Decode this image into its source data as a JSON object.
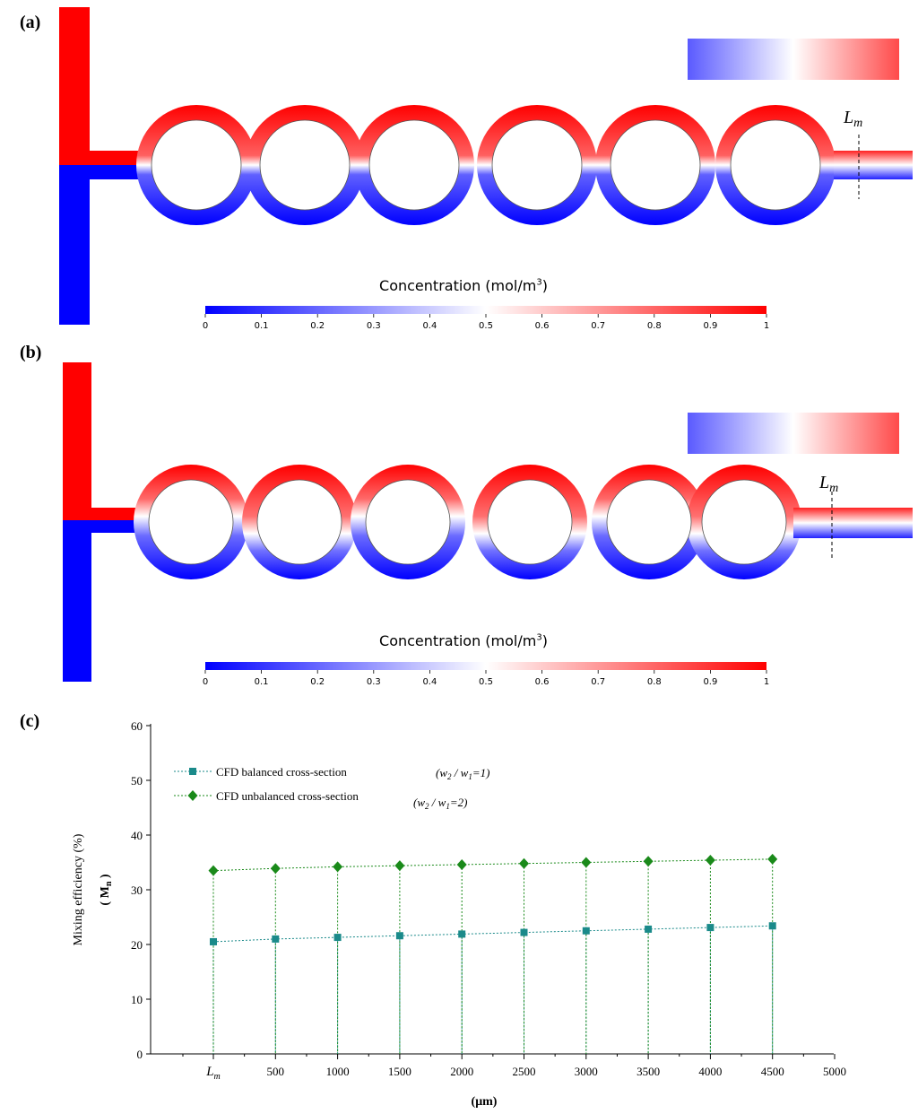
{
  "panels": {
    "a": {
      "label": "(a)"
    },
    "b": {
      "label": "(b)"
    },
    "c": {
      "label": "(c)"
    }
  },
  "colorbar": {
    "title_main": "Concentration (mol/m",
    "title_sup": "3",
    "title_end": ")",
    "ticks": [
      "0",
      "0.1",
      "0.2",
      "0.3",
      "0.4",
      "0.5",
      "0.6",
      "0.7",
      "0.8",
      "0.9",
      "1"
    ],
    "low_color": "#0000ff",
    "mid_color": "#ffffff",
    "high_color": "#ff0000"
  },
  "marker_label_main": "L",
  "marker_label_sub": "m",
  "chart_data": {
    "type": "scatter",
    "x": [
      "Lm",
      "500",
      "1000",
      "1500",
      "2000",
      "2500",
      "3000",
      "3500",
      "4000",
      "4500"
    ],
    "x_tick_labels": [
      "Lm",
      "500",
      "1000",
      "1500",
      "2000",
      "2500",
      "3000",
      "3500",
      "4000",
      "4500",
      "5000"
    ],
    "xlabel": "(μm)",
    "ylabel_main": "Mixing efficiency (%)",
    "ylabel_sub": "( M",
    "ylabel_sub_index": "n",
    "ylabel_sub_end": " )",
    "ylim": [
      0,
      60
    ],
    "y_ticks": [
      0,
      10,
      20,
      30,
      40,
      50,
      60
    ],
    "series": [
      {
        "name": "CFD balanced cross-section",
        "note": "(w2 / w1=1)",
        "marker": "square",
        "color": "#1a8a8a",
        "values": [
          20.5,
          21.0,
          21.3,
          21.6,
          21.9,
          22.2,
          22.5,
          22.8,
          23.1,
          23.4
        ]
      },
      {
        "name": "CFD unbalanced cross-section",
        "note": "(w2 / w1=2)",
        "marker": "diamond",
        "color": "#1a8a1a",
        "values": [
          33.5,
          33.9,
          34.2,
          34.4,
          34.6,
          34.8,
          35.0,
          35.2,
          35.4,
          35.6
        ]
      }
    ],
    "grid": false,
    "legend_position": "top-left"
  }
}
